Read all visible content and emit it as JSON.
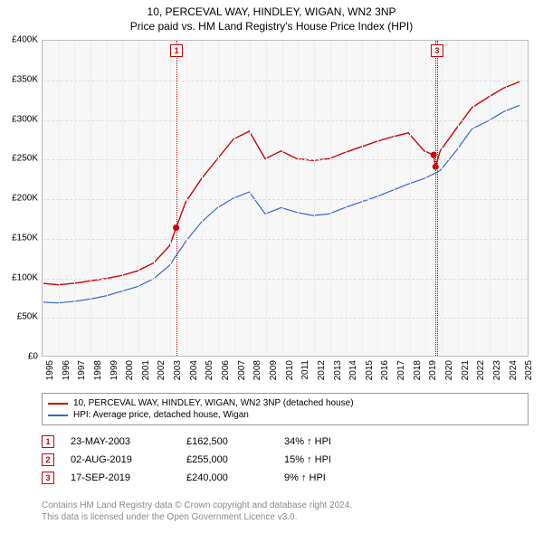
{
  "title": "10, PERCEVAL WAY, HINDLEY, WIGAN, WN2 3NP",
  "subtitle": "Price paid vs. HM Land Registry's House Price Index (HPI)",
  "chart": {
    "type": "line",
    "background_color": "#f7f7f7",
    "grid_color": "#dddddd",
    "border_color": "#bbbbbb",
    "xlim": [
      1995,
      2025.5
    ],
    "ylim": [
      0,
      400000
    ],
    "ytick_step": 50000,
    "ytick_labels": [
      "£0",
      "£50K",
      "£100K",
      "£150K",
      "£200K",
      "£250K",
      "£300K",
      "£350K",
      "£400K"
    ],
    "xtick_step": 1,
    "xtick_labels": [
      "1995",
      "1996",
      "1997",
      "1998",
      "1999",
      "2000",
      "2001",
      "2002",
      "2003",
      "2004",
      "2005",
      "2006",
      "2007",
      "2008",
      "2009",
      "2010",
      "2011",
      "2012",
      "2013",
      "2014",
      "2015",
      "2016",
      "2017",
      "2018",
      "2019",
      "2020",
      "2021",
      "2022",
      "2023",
      "2024",
      "2025"
    ],
    "series": [
      {
        "name": "property",
        "label": "10, PERCEVAL WAY, HINDLEY, WIGAN, WN2 3NP (detached house)",
        "color": "#cc0000",
        "line_width": 1.4,
        "points": [
          [
            1995,
            92000
          ],
          [
            1996,
            90000
          ],
          [
            1997,
            92000
          ],
          [
            1998,
            95000
          ],
          [
            1999,
            98000
          ],
          [
            2000,
            102000
          ],
          [
            2001,
            108000
          ],
          [
            2002,
            118000
          ],
          [
            2003,
            140000
          ],
          [
            2003.4,
            162500
          ],
          [
            2004,
            195000
          ],
          [
            2005,
            225000
          ],
          [
            2006,
            250000
          ],
          [
            2007,
            275000
          ],
          [
            2008,
            285000
          ],
          [
            2009,
            250000
          ],
          [
            2010,
            260000
          ],
          [
            2011,
            250000
          ],
          [
            2012,
            248000
          ],
          [
            2013,
            250000
          ],
          [
            2014,
            258000
          ],
          [
            2015,
            265000
          ],
          [
            2016,
            272000
          ],
          [
            2017,
            278000
          ],
          [
            2018,
            283000
          ],
          [
            2019,
            260000
          ],
          [
            2019.59,
            255000
          ],
          [
            2019.71,
            240000
          ],
          [
            2020,
            260000
          ],
          [
            2021,
            288000
          ],
          [
            2022,
            315000
          ],
          [
            2023,
            328000
          ],
          [
            2024,
            340000
          ],
          [
            2025,
            348000
          ]
        ]
      },
      {
        "name": "hpi",
        "label": "HPI: Average price, detached house, Wigan",
        "color": "#3366cc",
        "line_width": 1.2,
        "points": [
          [
            1995,
            68000
          ],
          [
            1996,
            67000
          ],
          [
            1997,
            69000
          ],
          [
            1998,
            72000
          ],
          [
            1999,
            76000
          ],
          [
            2000,
            82000
          ],
          [
            2001,
            88000
          ],
          [
            2002,
            98000
          ],
          [
            2003,
            115000
          ],
          [
            2004,
            145000
          ],
          [
            2005,
            170000
          ],
          [
            2006,
            188000
          ],
          [
            2007,
            200000
          ],
          [
            2008,
            208000
          ],
          [
            2009,
            180000
          ],
          [
            2010,
            188000
          ],
          [
            2011,
            182000
          ],
          [
            2012,
            178000
          ],
          [
            2013,
            180000
          ],
          [
            2014,
            188000
          ],
          [
            2015,
            195000
          ],
          [
            2016,
            202000
          ],
          [
            2017,
            210000
          ],
          [
            2018,
            218000
          ],
          [
            2019,
            225000
          ],
          [
            2020,
            235000
          ],
          [
            2021,
            260000
          ],
          [
            2022,
            288000
          ],
          [
            2023,
            298000
          ],
          [
            2024,
            310000
          ],
          [
            2025,
            318000
          ]
        ]
      }
    ],
    "event_markers": [
      {
        "n": "1",
        "x": 2003.4,
        "y": 162500,
        "color": "#cc0000",
        "show_top": true,
        "show_dot": true
      },
      {
        "n": "2",
        "x": 2019.59,
        "y": 255000,
        "color": "#cc0000",
        "show_top": false,
        "show_dot": true
      },
      {
        "n": "3",
        "x": 2019.71,
        "y": 240000,
        "color": "#cc0000",
        "show_top": true,
        "show_dot": true
      }
    ],
    "dot_radius": 3.5
  },
  "legend": {
    "items": [
      {
        "color": "#cc0000",
        "label": "10, PERCEVAL WAY, HINDLEY, WIGAN, WN2 3NP (detached house)"
      },
      {
        "color": "#3366cc",
        "label": "HPI: Average price, detached house, Wigan"
      }
    ]
  },
  "transactions": {
    "marker_colors": [
      "#cc0000",
      "#cc0000",
      "#cc0000"
    ],
    "rows": [
      {
        "n": "1",
        "date": "23-MAY-2003",
        "price": "£162,500",
        "diff": "34% ↑ HPI"
      },
      {
        "n": "2",
        "date": "02-AUG-2019",
        "price": "£255,000",
        "diff": "15% ↑ HPI"
      },
      {
        "n": "3",
        "date": "17-SEP-2019",
        "price": "£240,000",
        "diff": "9% ↑ HPI"
      }
    ]
  },
  "footer": {
    "line1": "Contains HM Land Registry data © Crown copyright and database right 2024.",
    "line2": "This data is licensed under the Open Government Licence v3.0."
  }
}
